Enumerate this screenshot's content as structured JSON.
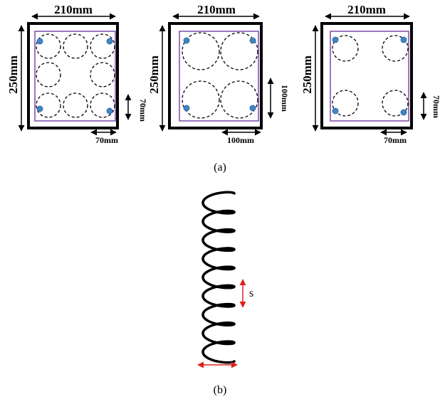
{
  "panels": [
    {
      "width_label": "210mm",
      "height_label": "250mm",
      "side_label": "70mm",
      "bottom_label": "70mm"
    },
    {
      "width_label": "210mm",
      "height_label": "250mm",
      "side_label": "100mm",
      "bottom_label": "100mm"
    },
    {
      "width_label": "210mm",
      "height_label": "250mm",
      "side_label": "70mm",
      "bottom_label": "70mm"
    }
  ],
  "caption_a": "(a)",
  "spacing_label": "s",
  "caption_b": "(b)"
}
